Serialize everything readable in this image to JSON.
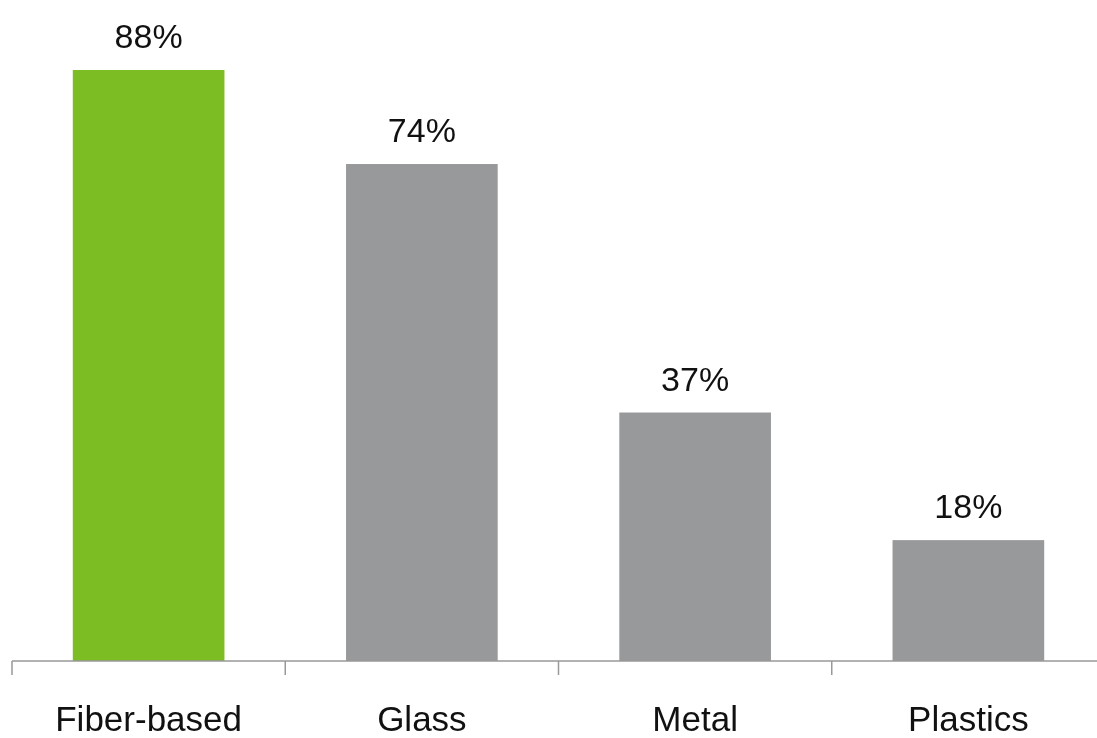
{
  "chart_data": {
    "type": "bar",
    "categories": [
      "Fiber-based",
      "Glass",
      "Metal",
      "Plastics"
    ],
    "values": [
      88,
      74,
      37,
      18
    ],
    "colors": [
      "#7bbd22",
      "#98999b",
      "#98999b",
      "#98999b"
    ],
    "value_labels": [
      "88%",
      "74%",
      "37%",
      "18%"
    ]
  }
}
